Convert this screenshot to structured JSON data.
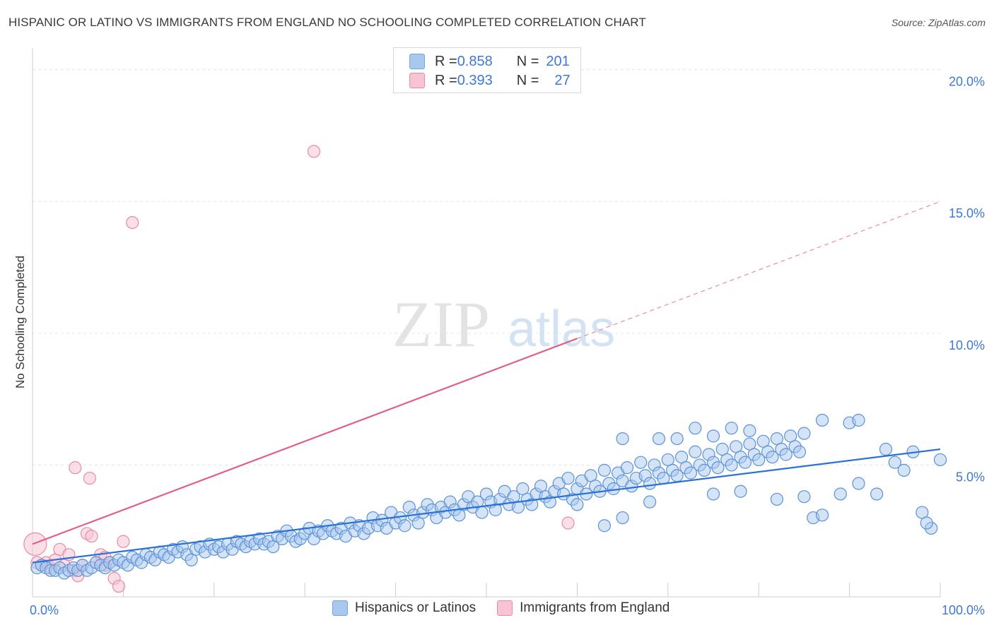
{
  "title": "HISPANIC OR LATINO VS IMMIGRANTS FROM ENGLAND NO SCHOOLING COMPLETED CORRELATION CHART",
  "source": "Source: ZipAtlas.com",
  "watermark": {
    "zip": "ZIP",
    "atlas": "atlas"
  },
  "legend_top": {
    "rows": [
      {
        "r_label": "R = ",
        "r_value": "0.858",
        "n_label": "N = ",
        "n_value": "201",
        "color": "#6fa8dc"
      },
      {
        "r_label": "R = ",
        "r_value": "0.393",
        "n_label": "N = ",
        "n_value": "27",
        "color": "#f4a6bd"
      }
    ]
  },
  "legend_bottom": [
    {
      "label": "Hispanics or Latinos",
      "color": "#6fa8dc"
    },
    {
      "label": "Immigrants from England",
      "color": "#f4a6bd"
    }
  ],
  "colors": {
    "blue_fill": "#aac8ee",
    "blue_stroke": "#5b93d6",
    "blue_line": "#2b72d6",
    "pink_fill": "#f8c4d3",
    "pink_stroke": "#e88ba6",
    "pink_line": "#e0608a",
    "tick_label": "#3c78d8",
    "grid": "#e6e6e6"
  },
  "chart_data": {
    "type": "scatter",
    "ylabel": "No Schooling Completed",
    "xlim": [
      0,
      100
    ],
    "ylim": [
      0,
      20.5
    ],
    "x_tick_labels": [
      "0.0%",
      "100.0%"
    ],
    "y_ticks": [
      5,
      10,
      15,
      20
    ],
    "y_tick_labels": [
      "5.0%",
      "10.0%",
      "15.0%",
      "20.0%"
    ],
    "grid": true,
    "series": [
      {
        "name": "Hispanics or Latinos",
        "trend": {
          "x": [
            0,
            100
          ],
          "y": [
            1.3,
            5.6
          ]
        },
        "points": [
          [
            0.5,
            1.1
          ],
          [
            1,
            1.2
          ],
          [
            1.5,
            1.1
          ],
          [
            2,
            1.0
          ],
          [
            2.5,
            1.0
          ],
          [
            3,
            1.1
          ],
          [
            3.5,
            0.9
          ],
          [
            4,
            1.0
          ],
          [
            4.5,
            1.1
          ],
          [
            5,
            1.0
          ],
          [
            5.5,
            1.2
          ],
          [
            6,
            1.0
          ],
          [
            6.5,
            1.1
          ],
          [
            7,
            1.3
          ],
          [
            7.5,
            1.2
          ],
          [
            8,
            1.1
          ],
          [
            8.5,
            1.3
          ],
          [
            9,
            1.2
          ],
          [
            9.5,
            1.4
          ],
          [
            10,
            1.3
          ],
          [
            10.5,
            1.2
          ],
          [
            11,
            1.5
          ],
          [
            11.5,
            1.4
          ],
          [
            12,
            1.3
          ],
          [
            12.5,
            1.6
          ],
          [
            13,
            1.5
          ],
          [
            13.5,
            1.4
          ],
          [
            14,
            1.7
          ],
          [
            14.5,
            1.6
          ],
          [
            15,
            1.5
          ],
          [
            15.5,
            1.8
          ],
          [
            16,
            1.7
          ],
          [
            16.5,
            1.9
          ],
          [
            17,
            1.6
          ],
          [
            17.5,
            1.4
          ],
          [
            18,
            1.8
          ],
          [
            18.5,
            1.9
          ],
          [
            19,
            1.7
          ],
          [
            19.5,
            2.0
          ],
          [
            20,
            1.8
          ],
          [
            20.5,
            1.9
          ],
          [
            21,
            1.7
          ],
          [
            21.5,
            2.0
          ],
          [
            22,
            1.8
          ],
          [
            22.5,
            2.1
          ],
          [
            23,
            2.0
          ],
          [
            23.5,
            1.9
          ],
          [
            24,
            2.1
          ],
          [
            24.5,
            2.0
          ],
          [
            25,
            2.2
          ],
          [
            25.5,
            2.0
          ],
          [
            26,
            2.1
          ],
          [
            26.5,
            1.9
          ],
          [
            27,
            2.3
          ],
          [
            27.5,
            2.2
          ],
          [
            28,
            2.5
          ],
          [
            28.5,
            2.3
          ],
          [
            29,
            2.1
          ],
          [
            29.5,
            2.2
          ],
          [
            30,
            2.4
          ],
          [
            30.5,
            2.6
          ],
          [
            31,
            2.2
          ],
          [
            31.5,
            2.5
          ],
          [
            32,
            2.4
          ],
          [
            32.5,
            2.7
          ],
          [
            33,
            2.5
          ],
          [
            33.5,
            2.4
          ],
          [
            34,
            2.6
          ],
          [
            34.5,
            2.3
          ],
          [
            35,
            2.8
          ],
          [
            35.5,
            2.5
          ],
          [
            36,
            2.7
          ],
          [
            36.5,
            2.4
          ],
          [
            37,
            2.6
          ],
          [
            37.5,
            3.0
          ],
          [
            38,
            2.7
          ],
          [
            38.5,
            2.9
          ],
          [
            39,
            2.6
          ],
          [
            39.5,
            3.2
          ],
          [
            40,
            2.8
          ],
          [
            40.5,
            3.0
          ],
          [
            41,
            2.7
          ],
          [
            41.5,
            3.4
          ],
          [
            42,
            3.1
          ],
          [
            42.5,
            2.8
          ],
          [
            43,
            3.2
          ],
          [
            43.5,
            3.5
          ],
          [
            44,
            3.3
          ],
          [
            44.5,
            3.0
          ],
          [
            45,
            3.4
          ],
          [
            45.5,
            3.2
          ],
          [
            46,
            3.6
          ],
          [
            46.5,
            3.3
          ],
          [
            47,
            3.1
          ],
          [
            47.5,
            3.5
          ],
          [
            48,
            3.8
          ],
          [
            48.5,
            3.4
          ],
          [
            49,
            3.6
          ],
          [
            49.5,
            3.2
          ],
          [
            50,
            3.9
          ],
          [
            50.5,
            3.6
          ],
          [
            51,
            3.3
          ],
          [
            51.5,
            3.7
          ],
          [
            52,
            4.0
          ],
          [
            52.5,
            3.5
          ],
          [
            53,
            3.8
          ],
          [
            53.5,
            3.4
          ],
          [
            54,
            4.1
          ],
          [
            54.5,
            3.7
          ],
          [
            55,
            3.5
          ],
          [
            55.5,
            3.9
          ],
          [
            56,
            4.2
          ],
          [
            56.5,
            3.8
          ],
          [
            57,
            3.6
          ],
          [
            57.5,
            4.0
          ],
          [
            58,
            4.3
          ],
          [
            58.5,
            3.9
          ],
          [
            59,
            4.5
          ],
          [
            59.5,
            3.7
          ],
          [
            60,
            4.1
          ],
          [
            60.5,
            4.4
          ],
          [
            61,
            3.9
          ],
          [
            61.5,
            4.6
          ],
          [
            62,
            4.2
          ],
          [
            62.5,
            4.0
          ],
          [
            63,
            4.8
          ],
          [
            63.5,
            4.3
          ],
          [
            64,
            4.1
          ],
          [
            64.5,
            4.7
          ],
          [
            65,
            4.4
          ],
          [
            65.5,
            4.9
          ],
          [
            66,
            4.2
          ],
          [
            66.5,
            4.5
          ],
          [
            67,
            5.1
          ],
          [
            67.5,
            4.6
          ],
          [
            68,
            4.3
          ],
          [
            68.5,
            5.0
          ],
          [
            69,
            4.7
          ],
          [
            69.5,
            4.5
          ],
          [
            70,
            5.2
          ],
          [
            70.5,
            4.8
          ],
          [
            71,
            4.6
          ],
          [
            71.5,
            5.3
          ],
          [
            72,
            4.9
          ],
          [
            72.5,
            4.7
          ],
          [
            73,
            5.5
          ],
          [
            73.5,
            5.0
          ],
          [
            74,
            4.8
          ],
          [
            74.5,
            5.4
          ],
          [
            75,
            5.1
          ],
          [
            75.5,
            4.9
          ],
          [
            76,
            5.6
          ],
          [
            76.5,
            5.2
          ],
          [
            77,
            5.0
          ],
          [
            77.5,
            5.7
          ],
          [
            78,
            5.3
          ],
          [
            78.5,
            5.1
          ],
          [
            79,
            5.8
          ],
          [
            79.5,
            5.4
          ],
          [
            80,
            5.2
          ],
          [
            80.5,
            5.9
          ],
          [
            81,
            5.5
          ],
          [
            81.5,
            5.3
          ],
          [
            82,
            6.0
          ],
          [
            82.5,
            5.6
          ],
          [
            83,
            5.4
          ],
          [
            83.5,
            6.1
          ],
          [
            84,
            5.7
          ],
          [
            84.5,
            5.5
          ],
          [
            85,
            6.2
          ],
          [
            65,
            6.0
          ],
          [
            69,
            6.0
          ],
          [
            71,
            6.0
          ],
          [
            73,
            6.4
          ],
          [
            75,
            6.1
          ],
          [
            77,
            6.4
          ],
          [
            79,
            6.3
          ],
          [
            87,
            6.7
          ],
          [
            90,
            6.6
          ],
          [
            91,
            6.7
          ],
          [
            60,
            3.5
          ],
          [
            63,
            2.7
          ],
          [
            65,
            3.0
          ],
          [
            68,
            3.6
          ],
          [
            75,
            3.9
          ],
          [
            78,
            4.0
          ],
          [
            82,
            3.7
          ],
          [
            85,
            3.8
          ],
          [
            86,
            3.0
          ],
          [
            87,
            3.1
          ],
          [
            89,
            3.9
          ],
          [
            91,
            4.3
          ],
          [
            93,
            3.9
          ],
          [
            94,
            5.6
          ],
          [
            95,
            5.1
          ],
          [
            96,
            4.8
          ],
          [
            97,
            5.5
          ],
          [
            98,
            3.2
          ],
          [
            99,
            2.6
          ],
          [
            100,
            5.2
          ],
          [
            98.5,
            2.8
          ]
        ]
      },
      {
        "name": "Immigrants from England",
        "trend": {
          "x": [
            0,
            60
          ],
          "y": [
            2.0,
            9.8
          ]
        },
        "trend_dashed": {
          "x": [
            60,
            100
          ],
          "y": [
            9.8,
            15.0
          ]
        },
        "points": [
          [
            0.3,
            2.0
          ],
          [
            0.5,
            1.3
          ],
          [
            1,
            1.2
          ],
          [
            1.5,
            1.3
          ],
          [
            2,
            1.1
          ],
          [
            2.5,
            1.4
          ],
          [
            3,
            1.8
          ],
          [
            3.5,
            1.2
          ],
          [
            4,
            1.6
          ],
          [
            4.5,
            1.0
          ],
          [
            5,
            0.8
          ],
          [
            5.5,
            1.2
          ],
          [
            6,
            2.4
          ],
          [
            6.5,
            2.3
          ],
          [
            7,
            1.3
          ],
          [
            7.5,
            1.6
          ],
          [
            8,
            1.5
          ],
          [
            8.5,
            1.3
          ],
          [
            9,
            0.7
          ],
          [
            9.5,
            0.4
          ],
          [
            10,
            2.1
          ],
          [
            11,
            14.2
          ],
          [
            31,
            16.9
          ],
          [
            4.7,
            4.9
          ],
          [
            6.3,
            4.5
          ],
          [
            59,
            2.8
          ],
          [
            8,
            1.2
          ]
        ]
      }
    ]
  }
}
